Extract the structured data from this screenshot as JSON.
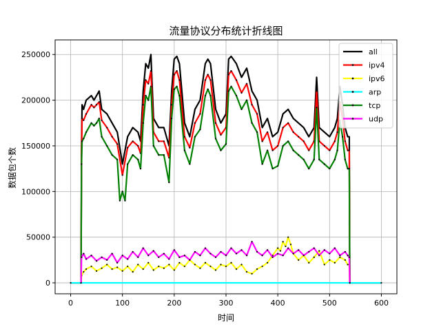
{
  "chart_data": {
    "type": "line",
    "title": "流量协议分布统计折线图",
    "xlabel": "时间",
    "ylabel": "数据包个数",
    "xlim": [
      -30,
      630
    ],
    "ylim": [
      -12000,
      266000
    ],
    "xticks": [
      0,
      100,
      200,
      300,
      400,
      500,
      600
    ],
    "yticks": [
      0,
      50000,
      100000,
      150000,
      200000,
      250000
    ],
    "grid": true,
    "legend_position": "top-right",
    "series": [
      {
        "name": "all",
        "color": "#000000",
        "marker": false,
        "width": 2.2,
        "x": [
          0,
          20,
          21,
          22,
          25,
          30,
          40,
          45,
          50,
          55,
          60,
          70,
          80,
          90,
          100,
          110,
          120,
          130,
          135,
          140,
          145,
          150,
          155,
          160,
          170,
          180,
          190,
          195,
          200,
          205,
          210,
          220,
          230,
          240,
          250,
          260,
          265,
          270,
          280,
          290,
          300,
          305,
          310,
          320,
          330,
          340,
          350,
          360,
          370,
          380,
          390,
          400,
          410,
          420,
          430,
          440,
          450,
          460,
          470,
          475,
          480,
          490,
          500,
          510,
          515,
          520,
          525,
          530,
          535,
          538,
          539,
          540,
          560,
          580,
          600
        ],
        "y": [
          0,
          0,
          150000,
          195000,
          190000,
          200000,
          205000,
          200000,
          205000,
          210000,
          190000,
          185000,
          175000,
          165000,
          130000,
          160000,
          170000,
          165000,
          155000,
          210000,
          240000,
          235000,
          250000,
          180000,
          170000,
          170000,
          150000,
          210000,
          245000,
          248000,
          240000,
          175000,
          160000,
          190000,
          200000,
          240000,
          245000,
          240000,
          190000,
          175000,
          185000,
          245000,
          248000,
          240000,
          225000,
          235000,
          210000,
          200000,
          170000,
          180000,
          160000,
          165000,
          185000,
          190000,
          180000,
          175000,
          170000,
          160000,
          170000,
          225000,
          170000,
          165000,
          160000,
          170000,
          180000,
          215000,
          195000,
          170000,
          160000,
          160000,
          0,
          0,
          0,
          0,
          0
        ]
      },
      {
        "name": "ipv4",
        "color": "#ff0000",
        "marker": true,
        "width": 2.2,
        "x": [
          20,
          21,
          22,
          25,
          30,
          40,
          45,
          50,
          55,
          60,
          70,
          80,
          90,
          100,
          110,
          120,
          130,
          135,
          140,
          145,
          150,
          155,
          160,
          170,
          180,
          190,
          195,
          200,
          205,
          210,
          220,
          230,
          240,
          250,
          260,
          265,
          270,
          280,
          290,
          300,
          305,
          310,
          320,
          330,
          340,
          350,
          360,
          370,
          380,
          390,
          400,
          410,
          420,
          430,
          440,
          450,
          460,
          470,
          475,
          480,
          490,
          500,
          510,
          515,
          520,
          525,
          530,
          535,
          538,
          539
        ],
        "y": [
          0,
          140000,
          180000,
          178000,
          185000,
          195000,
          192000,
          195000,
          198000,
          178000,
          170000,
          160000,
          152000,
          118000,
          148000,
          155000,
          150000,
          142000,
          195000,
          222000,
          218000,
          232000,
          165000,
          155000,
          155000,
          137000,
          195000,
          228000,
          232000,
          222000,
          160000,
          148000,
          175000,
          185000,
          222000,
          228000,
          222000,
          175000,
          162000,
          170000,
          228000,
          232000,
          222000,
          208000,
          218000,
          195000,
          185000,
          155000,
          165000,
          145000,
          150000,
          170000,
          175000,
          165000,
          160000,
          155000,
          145000,
          155000,
          210000,
          155000,
          150000,
          145000,
          155000,
          165000,
          198000,
          180000,
          155000,
          145000,
          145000,
          0
        ]
      },
      {
        "name": "ipv6",
        "color": "#ffff00",
        "marker": true,
        "width": 2.2,
        "x": [
          20,
          21,
          25,
          30,
          40,
          50,
          60,
          70,
          80,
          90,
          100,
          110,
          120,
          130,
          140,
          150,
          160,
          170,
          180,
          190,
          200,
          210,
          220,
          230,
          240,
          250,
          260,
          270,
          280,
          290,
          300,
          310,
          320,
          330,
          340,
          350,
          360,
          370,
          380,
          390,
          400,
          405,
          410,
          415,
          420,
          425,
          430,
          440,
          450,
          460,
          470,
          480,
          490,
          500,
          510,
          520,
          530,
          535,
          538,
          539
        ],
        "y": [
          0,
          8000,
          12000,
          15000,
          18000,
          13000,
          16000,
          20000,
          15000,
          17000,
          13000,
          18000,
          12000,
          20000,
          15000,
          22000,
          14000,
          18000,
          16000,
          20000,
          14000,
          22000,
          18000,
          25000,
          20000,
          16000,
          22000,
          18000,
          14000,
          20000,
          18000,
          22000,
          15000,
          20000,
          12000,
          10000,
          15000,
          18000,
          22000,
          30000,
          38000,
          35000,
          45000,
          40000,
          50000,
          42000,
          32000,
          25000,
          30000,
          22000,
          28000,
          35000,
          20000,
          25000,
          22000,
          28000,
          25000,
          20000,
          20000,
          0
        ]
      },
      {
        "name": "arp",
        "color": "#00ffff",
        "marker": true,
        "width": 2.2,
        "x": [
          0,
          600
        ],
        "y": [
          0,
          0
        ]
      },
      {
        "name": "tcp",
        "color": "#008000",
        "marker": true,
        "width": 2.2,
        "x": [
          20,
          21,
          22,
          25,
          30,
          40,
          45,
          50,
          55,
          60,
          70,
          80,
          90,
          95,
          100,
          105,
          110,
          120,
          130,
          135,
          140,
          145,
          150,
          155,
          160,
          170,
          180,
          190,
          195,
          200,
          205,
          210,
          220,
          230,
          240,
          250,
          260,
          265,
          270,
          280,
          290,
          300,
          305,
          310,
          320,
          330,
          340,
          350,
          360,
          370,
          380,
          390,
          400,
          410,
          420,
          430,
          440,
          450,
          460,
          470,
          475,
          480,
          490,
          500,
          510,
          515,
          520,
          525,
          530,
          535,
          538,
          539
        ],
        "y": [
          0,
          130000,
          155000,
          158000,
          165000,
          175000,
          172000,
          175000,
          180000,
          160000,
          150000,
          140000,
          135000,
          90000,
          100000,
          90000,
          130000,
          140000,
          135000,
          125000,
          175000,
          205000,
          200000,
          215000,
          150000,
          140000,
          140000,
          110000,
          180000,
          212000,
          215000,
          205000,
          145000,
          130000,
          160000,
          168000,
          205000,
          212000,
          205000,
          158000,
          145000,
          152000,
          210000,
          215000,
          205000,
          190000,
          200000,
          175000,
          165000,
          130000,
          145000,
          125000,
          128000,
          150000,
          155000,
          145000,
          140000,
          135000,
          125000,
          135000,
          192000,
          135000,
          130000,
          125000,
          135000,
          145000,
          178000,
          160000,
          135000,
          125000,
          125000,
          0
        ]
      },
      {
        "name": "udp",
        "color": "#ff00ff",
        "marker": true,
        "width": 2.2,
        "x": [
          20,
          21,
          25,
          30,
          40,
          50,
          60,
          70,
          80,
          90,
          100,
          110,
          120,
          130,
          140,
          150,
          160,
          170,
          180,
          190,
          200,
          210,
          220,
          230,
          240,
          250,
          260,
          270,
          280,
          290,
          300,
          310,
          320,
          330,
          340,
          350,
          360,
          370,
          380,
          390,
          400,
          410,
          420,
          430,
          440,
          450,
          460,
          470,
          480,
          490,
          500,
          510,
          520,
          530,
          535,
          538,
          539
        ],
        "y": [
          0,
          28000,
          32000,
          26000,
          30000,
          24000,
          28000,
          25000,
          32000,
          22000,
          30000,
          26000,
          34000,
          28000,
          38000,
          30000,
          35000,
          28000,
          32000,
          26000,
          36000,
          28000,
          30000,
          25000,
          34000,
          30000,
          38000,
          32000,
          28000,
          34000,
          30000,
          38000,
          32000,
          36000,
          30000,
          45000,
          34000,
          30000,
          36000,
          28000,
          32000,
          30000,
          38000,
          32000,
          36000,
          30000,
          34000,
          38000,
          30000,
          36000,
          32000,
          38000,
          30000,
          34000,
          30000,
          28000,
          0
        ]
      }
    ]
  }
}
